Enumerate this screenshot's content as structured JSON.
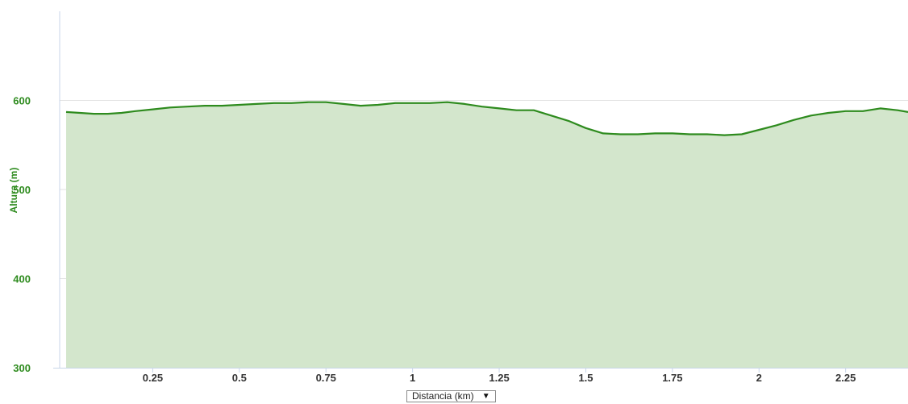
{
  "chart_data": {
    "type": "area",
    "title": "",
    "ylabel": "Altura (m)",
    "xlabel": "Distancia (km)",
    "xlim": [
      0,
      2.43
    ],
    "ylim": [
      300,
      700
    ],
    "y_ticks": [
      "300",
      "400",
      "500",
      "600"
    ],
    "x_ticks": [
      "0.25",
      "0.5",
      "0.75",
      "1",
      "1.25",
      "1.5",
      "1.75",
      "2",
      "2.25"
    ],
    "grid": true,
    "legend": "none",
    "series": [
      {
        "x": [
          0,
          0.04,
          0.08,
          0.12,
          0.16,
          0.2,
          0.25,
          0.3,
          0.35,
          0.4,
          0.45,
          0.5,
          0.55,
          0.6,
          0.65,
          0.7,
          0.75,
          0.8,
          0.85,
          0.9,
          0.95,
          1.0,
          1.05,
          1.1,
          1.15,
          1.2,
          1.25,
          1.3,
          1.35,
          1.4,
          1.45,
          1.5,
          1.55,
          1.6,
          1.65,
          1.7,
          1.75,
          1.8,
          1.85,
          1.9,
          1.95,
          2.0,
          2.05,
          2.1,
          2.15,
          2.2,
          2.25,
          2.3,
          2.35,
          2.4,
          2.43
        ],
        "values": [
          587,
          586,
          585,
          585,
          586,
          588,
          590,
          592,
          593,
          594,
          594,
          595,
          596,
          597,
          597,
          598,
          598,
          596,
          594,
          595,
          597,
          597,
          597,
          598,
          596,
          593,
          591,
          589,
          589,
          583,
          577,
          569,
          563,
          562,
          562,
          563,
          563,
          562,
          562,
          561,
          562,
          567,
          572,
          578,
          583,
          586,
          588,
          588,
          591,
          589,
          587
        ]
      }
    ],
    "colors": {
      "line": "#2e8b1e",
      "fill": "#d3e6cc",
      "grid": "#e2e2e2",
      "axis": "#c8d6e8",
      "y_tick": "#2e8b1e",
      "x_tick": "#333333"
    }
  },
  "controls": {
    "xunit_label": "Distancia (km)",
    "arrow": "▼"
  }
}
